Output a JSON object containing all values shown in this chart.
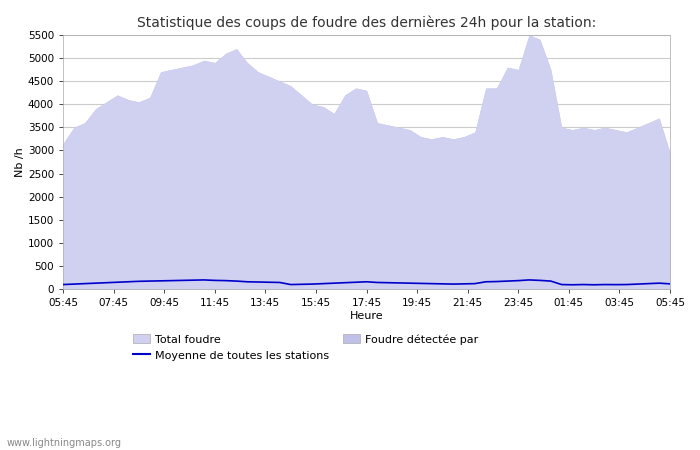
{
  "title": "Statistique des coups de foudre des dernières 24h pour la station:",
  "xlabel": "Heure",
  "ylabel": "Nb /h",
  "ylim": [
    0,
    5500
  ],
  "yticks": [
    0,
    500,
    1000,
    1500,
    2000,
    2500,
    3000,
    3500,
    4000,
    4500,
    5000,
    5500
  ],
  "xtick_labels": [
    "05:45",
    "07:45",
    "09:45",
    "11:45",
    "13:45",
    "15:45",
    "17:45",
    "19:45",
    "21:45",
    "23:45",
    "01:45",
    "03:45",
    "05:45"
  ],
  "fill_color_total": "#d0d0f0",
  "fill_color_detected": "#c0c0e8",
  "line_color": "#0000cc",
  "bg_color": "#ffffff",
  "grid_color": "#cccccc",
  "title_color": "#333333",
  "legend_labels": [
    "Total foudre",
    "Moyenne de toutes les stations",
    "Foudre détectée par"
  ],
  "watermark": "www.lightningmaps.org",
  "total_foudre": [
    3150,
    3500,
    3600,
    3900,
    4050,
    4200,
    4100,
    4050,
    4150,
    4700,
    4750,
    4800,
    4850,
    4950,
    4900,
    5100,
    5200,
    4900,
    4700,
    4600,
    4500,
    4400,
    4200,
    4000,
    3950,
    3800,
    4200,
    4350,
    4300,
    3600,
    3550,
    3500,
    3450,
    3300,
    3250,
    3300,
    3250,
    3300,
    3400,
    4350,
    4350,
    4800,
    4750,
    5500,
    5400,
    4750,
    3500,
    3450,
    3500,
    3450,
    3500,
    3450,
    3400,
    3500,
    3600,
    3700,
    2950
  ],
  "moyenne": [
    100,
    110,
    120,
    130,
    140,
    150,
    160,
    170,
    175,
    180,
    185,
    190,
    195,
    200,
    190,
    185,
    175,
    160,
    155,
    150,
    145,
    100,
    105,
    110,
    120,
    130,
    140,
    150,
    160,
    145,
    140,
    135,
    130,
    125,
    120,
    115,
    110,
    115,
    120,
    160,
    165,
    175,
    185,
    200,
    190,
    175,
    100,
    95,
    100,
    95,
    100,
    98,
    100,
    110,
    120,
    130,
    115
  ]
}
